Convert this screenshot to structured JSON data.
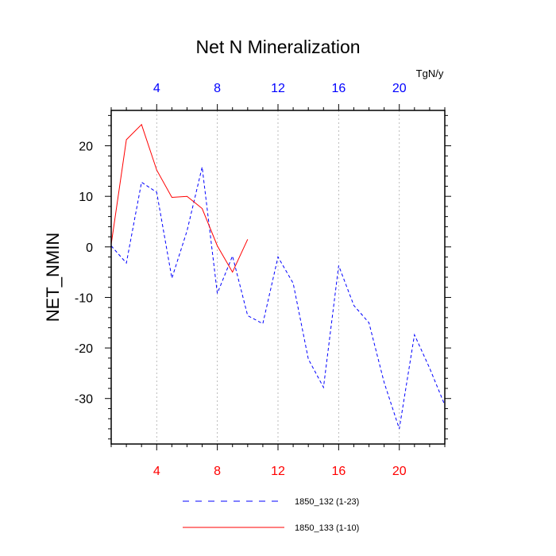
{
  "chart_data": {
    "type": "line",
    "title": "Net N Mineralization",
    "ylabel": "NET_NMIN",
    "units": "TgN/y",
    "xlim": [
      1,
      23
    ],
    "ylim": [
      -39,
      27
    ],
    "x_ticks": [
      4,
      8,
      12,
      16,
      20
    ],
    "y_ticks": [
      20,
      10,
      0,
      -10,
      -20,
      -30
    ],
    "x_tick_colors": {
      "bottom": "#ff0000",
      "top": "#0000ff"
    },
    "grid": "vertical dashed at major x ticks",
    "series": [
      {
        "name": "1850_132 (1-23)",
        "color": "#0000ff",
        "style": "dashed",
        "x": [
          1,
          2,
          3,
          4,
          5,
          6,
          7,
          8,
          9,
          10,
          11,
          12,
          13,
          14,
          15,
          16,
          17,
          18,
          19,
          20,
          21,
          22,
          23
        ],
        "values": [
          0.2,
          -3.2,
          12.8,
          10.8,
          -6.2,
          3.2,
          15.8,
          -9.2,
          -1.8,
          -13.6,
          -15.2,
          -2,
          -7.2,
          -22.2,
          -27.8,
          -3.7,
          -11.6,
          -15,
          -26.8,
          -36,
          -17.4,
          -24,
          -31.3
        ]
      },
      {
        "name": "1850_133 (1-10)",
        "color": "#ff0000",
        "style": "solid",
        "x": [
          1,
          2,
          3,
          4,
          5,
          6,
          7,
          8,
          9,
          10
        ],
        "values": [
          0.5,
          21.2,
          24.2,
          15.2,
          9.8,
          10,
          7.6,
          0.2,
          -5,
          1.5
        ]
      }
    ],
    "legend": "bottom"
  }
}
